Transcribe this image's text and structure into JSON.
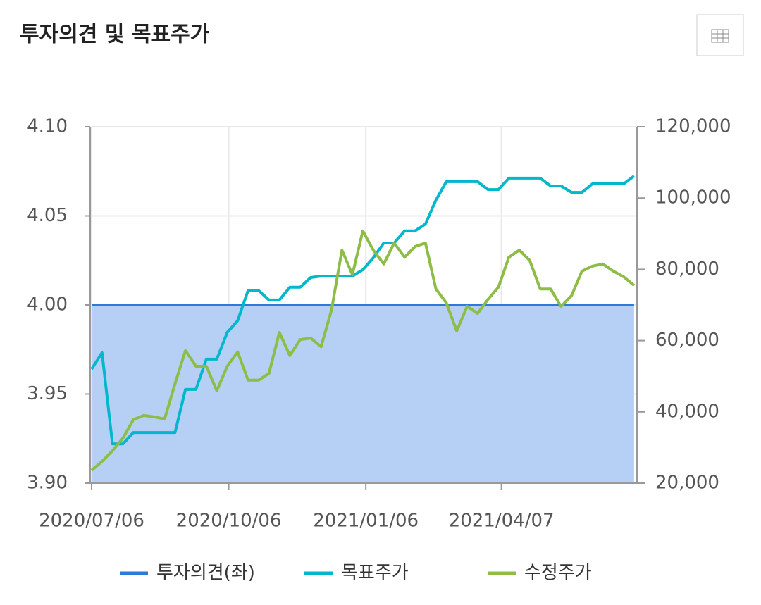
{
  "chart_data": {
    "type": "line",
    "title": "투자의견 및 목표주가",
    "x": [
      "2020/07/06",
      "2020/07/13",
      "2020/07/20",
      "2020/07/27",
      "2020/08/03",
      "2020/08/10",
      "2020/08/17",
      "2020/08/24",
      "2020/08/31",
      "2020/09/07",
      "2020/09/14",
      "2020/09/21",
      "2020/09/28",
      "2020/10/05",
      "2020/10/12",
      "2020/10/19",
      "2020/10/26",
      "2020/11/02",
      "2020/11/09",
      "2020/11/16",
      "2020/11/23",
      "2020/11/30",
      "2020/12/07",
      "2020/12/14",
      "2020/12/21",
      "2020/12/28",
      "2021/01/04",
      "2021/01/11",
      "2021/01/18",
      "2021/01/25",
      "2021/02/01",
      "2021/02/08",
      "2021/02/15",
      "2021/02/22",
      "2021/03/01",
      "2021/03/08",
      "2021/03/15",
      "2021/03/22",
      "2021/03/29",
      "2021/04/05",
      "2021/04/12",
      "2021/04/19",
      "2021/04/26",
      "2021/05/03",
      "2021/05/10",
      "2021/05/17",
      "2021/05/24",
      "2021/05/31",
      "2021/06/07",
      "2021/06/14",
      "2021/06/21",
      "2021/06/28",
      "2021/07/05"
    ],
    "xlim": [
      "2020/07/06",
      "2021/07/06"
    ],
    "xticks": [
      "2020/07/06",
      "2020/10/06",
      "2021/01/06",
      "2021/04/07"
    ],
    "ylim": [
      3.9,
      4.1
    ],
    "yticks": [
      {
        "value": 3.9,
        "label": "3.90"
      },
      3.95,
      {
        "value": 4.0,
        "label": "4.00"
      },
      4.05,
      {
        "value": 4.1,
        "label": "4.10"
      }
    ],
    "y2lim": [
      20000,
      120000
    ],
    "y2ticks": [
      {
        "value": 20000,
        "label": "20,000"
      },
      {
        "value": 40000,
        "label": "40,000"
      },
      {
        "value": 60000,
        "label": "60,000"
      },
      {
        "value": 80000,
        "label": "80,000"
      },
      {
        "value": 100000,
        "label": "100,000"
      },
      {
        "value": 120000,
        "label": "120,000"
      }
    ],
    "grid": true,
    "legend": "bottom",
    "series": [
      {
        "name": "투자의견(좌)",
        "color": "#2f7ad8",
        "fill": "#b5d0f4",
        "values": [
          4,
          4,
          4,
          4,
          4,
          4,
          4,
          4,
          4,
          4,
          4,
          4,
          4,
          4,
          4,
          4,
          4,
          4,
          4,
          4,
          4,
          4,
          4,
          4,
          4,
          4,
          4,
          4,
          4,
          4,
          4,
          4,
          4,
          4,
          4,
          4,
          4,
          4,
          4,
          4,
          4,
          4,
          4,
          4,
          4,
          4,
          4,
          4,
          4,
          4,
          4,
          4,
          4
        ]
      },
      {
        "name": "목표주가",
        "color": "#00b7cc",
        "axis": "y2",
        "values": [
          52000,
          56600,
          31000,
          31000,
          34200,
          34200,
          34200,
          34200,
          34200,
          46300,
          46300,
          54800,
          54800,
          62300,
          65600,
          74100,
          74100,
          71400,
          71400,
          75000,
          75000,
          77700,
          78100,
          78100,
          78100,
          78100,
          79900,
          83200,
          87400,
          87400,
          90800,
          90800,
          92700,
          99400,
          104600,
          104600,
          104600,
          104600,
          102400,
          102400,
          105600,
          105600,
          105600,
          105600,
          103400,
          103400,
          101600,
          101600,
          104000,
          104000,
          104000,
          104000,
          106200
        ]
      },
      {
        "name": "수정주가",
        "color": "#8dbd46",
        "axis": "y2",
        "values": [
          23600,
          26100,
          29100,
          32600,
          37800,
          39000,
          38600,
          38000,
          47900,
          57200,
          52800,
          52800,
          45900,
          52800,
          56800,
          48900,
          48900,
          50800,
          62300,
          55800,
          60300,
          60700,
          58300,
          68600,
          85400,
          78500,
          90800,
          85400,
          81500,
          87400,
          83400,
          86400,
          87400,
          74500,
          70600,
          62700,
          69600,
          67600,
          71600,
          75000,
          83400,
          85400,
          82500,
          74500,
          74500,
          69600,
          72600,
          79500,
          80900,
          81500,
          79500,
          77900,
          75500
        ]
      }
    ]
  }
}
